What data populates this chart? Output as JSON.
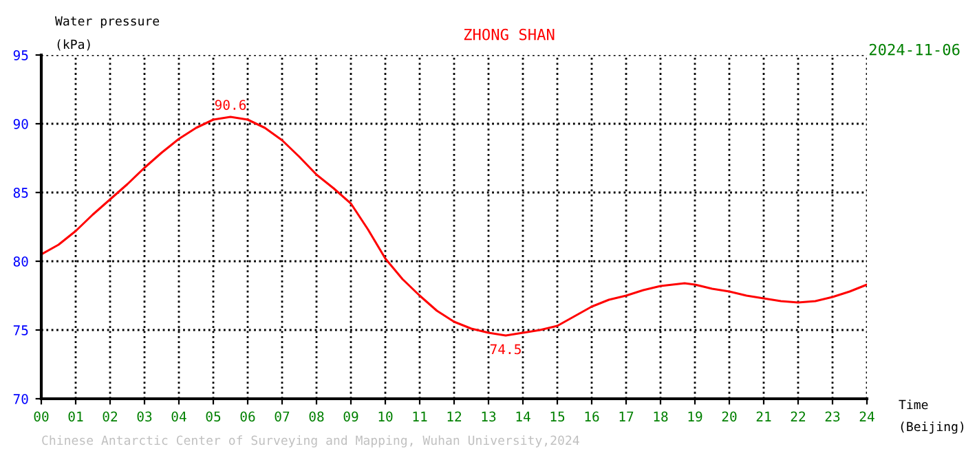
{
  "chart_data": {
    "type": "line",
    "title": "ZHONG SHAN",
    "subtitle": "2024-11-06",
    "ylabel": "Water pressure",
    "xlabel": "Time",
    "annotations": [
      "(kPa)",
      "(Beijing)",
      "Chinese Antarctic Center of Surveying and Mapping, Wuhan University,2024",
      {
        "text": "90.6",
        "x": 5.5,
        "y": 90.6
      },
      {
        "text": "74.5",
        "x": 13.5,
        "y": 74.5
      }
    ],
    "x": [
      0,
      0.5,
      1,
      1.5,
      2,
      2.5,
      3,
      3.5,
      4,
      4.5,
      5,
      5.5,
      6,
      6.5,
      7,
      7.5,
      8,
      8.5,
      9,
      9.5,
      10,
      10.5,
      11,
      11.5,
      12,
      12.5,
      13,
      13.5,
      14,
      14.5,
      15,
      15.5,
      16,
      16.5,
      17,
      17.5,
      18,
      18.7,
      19,
      19.5,
      20,
      20.5,
      21,
      21.5,
      22,
      22.5,
      23,
      23.5,
      24
    ],
    "series": [
      {
        "color": "#ff0000",
        "values": [
          80.5,
          81.2,
          82.2,
          83.4,
          84.5,
          85.6,
          86.8,
          87.9,
          88.9,
          89.7,
          90.3,
          90.5,
          90.3,
          89.7,
          88.8,
          87.6,
          86.3,
          85.3,
          84.2,
          82.3,
          80.2,
          78.7,
          77.5,
          76.4,
          75.6,
          75.1,
          74.8,
          74.6,
          74.8,
          75.0,
          75.3,
          76.0,
          76.7,
          77.2,
          77.5,
          77.9,
          78.2,
          78.4,
          78.3,
          78.0,
          77.8,
          77.5,
          77.3,
          77.1,
          77.0,
          77.1,
          77.4,
          77.8,
          78.3
        ]
      }
    ],
    "xlim": [
      0,
      24
    ],
    "ylim": [
      70,
      95
    ],
    "xticks": [
      {
        "value": 0,
        "label": "00"
      },
      {
        "value": 1,
        "label": "01"
      },
      {
        "value": 2,
        "label": "02"
      },
      {
        "value": 3,
        "label": "03"
      },
      {
        "value": 4,
        "label": "04"
      },
      {
        "value": 5,
        "label": "05"
      },
      {
        "value": 6,
        "label": "06"
      },
      {
        "value": 7,
        "label": "07"
      },
      {
        "value": 8,
        "label": "08"
      },
      {
        "value": 9,
        "label": "09"
      },
      10,
      11,
      12,
      13,
      14,
      15,
      16,
      17,
      18,
      19,
      20,
      21,
      22,
      23,
      24
    ],
    "yticks": [
      70,
      75,
      80,
      85,
      90,
      95
    ],
    "grid": true,
    "line_style": "solid",
    "marker": "none"
  }
}
